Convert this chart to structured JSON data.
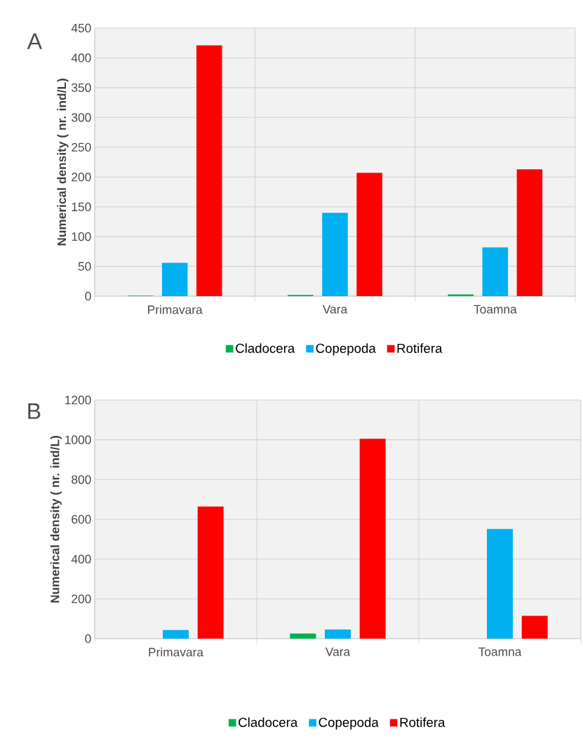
{
  "chart_data": [
    {
      "type": "bar",
      "title": "A",
      "ylabel": "Numerical density ( nr. ind/L)",
      "categories": [
        "Primavara",
        "Vara",
        "Toamna"
      ],
      "series": [
        {
          "name": "Cladocera",
          "color": "#00b050",
          "values": [
            1,
            2,
            3
          ]
        },
        {
          "name": "Copepoda",
          "color": "#00b0f0",
          "values": [
            56,
            140,
            82
          ]
        },
        {
          "name": "Rotifera",
          "color": "#ff0000",
          "values": [
            421,
            207,
            213
          ]
        }
      ],
      "ylim": [
        0,
        450
      ],
      "yticks": [
        0,
        50,
        100,
        150,
        200,
        250,
        300,
        350,
        400,
        450
      ],
      "grid": true,
      "legend": "bottom"
    },
    {
      "type": "bar",
      "title": "B",
      "ylabel": "Numerical density ( nr. ind/L)",
      "categories": [
        "Primavara",
        "Vara",
        "Toamna"
      ],
      "series": [
        {
          "name": "Cladocera",
          "color": "#00b050",
          "values": [
            0,
            26,
            0
          ]
        },
        {
          "name": "Copepoda",
          "color": "#00b0f0",
          "values": [
            43,
            46,
            552
          ]
        },
        {
          "name": "Rotifera",
          "color": "#ff0000",
          "values": [
            664,
            1005,
            115
          ]
        }
      ],
      "ylim": [
        0,
        1200
      ],
      "yticks": [
        0,
        200,
        400,
        600,
        800,
        1000,
        1200
      ],
      "grid": true,
      "legend": "bottom"
    }
  ]
}
